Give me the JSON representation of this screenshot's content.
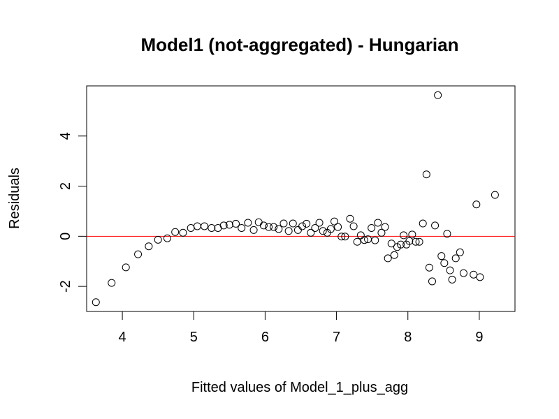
{
  "chart_data": {
    "type": "scatter",
    "title": "Model1 (not-aggregated) - Hungarian",
    "xlabel": "Fitted values of Model_1_plus_agg",
    "ylabel": "Residuals",
    "xlim": [
      3.5,
      9.5
    ],
    "ylim": [
      -3.0,
      6.0
    ],
    "x_ticks": [
      4,
      5,
      6,
      7,
      8,
      9
    ],
    "y_ticks": [
      -2,
      0,
      2,
      4
    ],
    "reference_line": {
      "y": 0,
      "color": "#ff0000"
    },
    "marker": "open-circle",
    "grid": false,
    "legend": "none",
    "points": [
      {
        "x": 3.63,
        "y": -2.63
      },
      {
        "x": 3.85,
        "y": -1.86
      },
      {
        "x": 4.05,
        "y": -1.24
      },
      {
        "x": 4.22,
        "y": -0.72
      },
      {
        "x": 4.37,
        "y": -0.4
      },
      {
        "x": 4.5,
        "y": -0.14
      },
      {
        "x": 4.63,
        "y": -0.08
      },
      {
        "x": 4.74,
        "y": 0.17
      },
      {
        "x": 4.85,
        "y": 0.14
      },
      {
        "x": 4.96,
        "y": 0.33
      },
      {
        "x": 5.05,
        "y": 0.4
      },
      {
        "x": 5.15,
        "y": 0.4
      },
      {
        "x": 5.25,
        "y": 0.33
      },
      {
        "x": 5.34,
        "y": 0.33
      },
      {
        "x": 5.42,
        "y": 0.43
      },
      {
        "x": 5.5,
        "y": 0.46
      },
      {
        "x": 5.59,
        "y": 0.5
      },
      {
        "x": 5.67,
        "y": 0.33
      },
      {
        "x": 5.76,
        "y": 0.54
      },
      {
        "x": 5.84,
        "y": 0.25
      },
      {
        "x": 5.91,
        "y": 0.56
      },
      {
        "x": 5.98,
        "y": 0.43
      },
      {
        "x": 6.05,
        "y": 0.37
      },
      {
        "x": 6.12,
        "y": 0.37
      },
      {
        "x": 6.19,
        "y": 0.29
      },
      {
        "x": 6.26,
        "y": 0.51
      },
      {
        "x": 6.33,
        "y": 0.21
      },
      {
        "x": 6.39,
        "y": 0.51
      },
      {
        "x": 6.46,
        "y": 0.25
      },
      {
        "x": 6.52,
        "y": 0.4
      },
      {
        "x": 6.58,
        "y": 0.5
      },
      {
        "x": 6.64,
        "y": 0.14
      },
      {
        "x": 6.7,
        "y": 0.33
      },
      {
        "x": 6.76,
        "y": 0.54
      },
      {
        "x": 6.81,
        "y": 0.21
      },
      {
        "x": 6.87,
        "y": 0.14
      },
      {
        "x": 6.92,
        "y": 0.29
      },
      {
        "x": 6.97,
        "y": 0.59
      },
      {
        "x": 7.02,
        "y": 0.37
      },
      {
        "x": 7.07,
        "y": -0.01
      },
      {
        "x": 7.12,
        "y": -0.01
      },
      {
        "x": 7.19,
        "y": 0.7
      },
      {
        "x": 7.24,
        "y": 0.4
      },
      {
        "x": 7.29,
        "y": -0.22
      },
      {
        "x": 7.34,
        "y": 0.04
      },
      {
        "x": 7.39,
        "y": -0.15
      },
      {
        "x": 7.44,
        "y": -0.12
      },
      {
        "x": 7.49,
        "y": 0.33
      },
      {
        "x": 7.54,
        "y": -0.16
      },
      {
        "x": 7.58,
        "y": 0.54
      },
      {
        "x": 7.63,
        "y": 0.14
      },
      {
        "x": 7.68,
        "y": 0.37
      },
      {
        "x": 7.72,
        "y": -0.88
      },
      {
        "x": 7.77,
        "y": -0.29
      },
      {
        "x": 7.81,
        "y": -0.75
      },
      {
        "x": 7.85,
        "y": -0.43
      },
      {
        "x": 7.9,
        "y": -0.33
      },
      {
        "x": 7.94,
        "y": 0.04
      },
      {
        "x": 7.98,
        "y": -0.33
      },
      {
        "x": 8.02,
        "y": -0.19
      },
      {
        "x": 8.06,
        "y": 0.07
      },
      {
        "x": 8.11,
        "y": -0.22
      },
      {
        "x": 8.16,
        "y": -0.22
      },
      {
        "x": 8.21,
        "y": 0.51
      },
      {
        "x": 8.26,
        "y": 2.47
      },
      {
        "x": 8.3,
        "y": -1.25
      },
      {
        "x": 8.34,
        "y": -1.8
      },
      {
        "x": 8.38,
        "y": 0.43
      },
      {
        "x": 8.42,
        "y": 5.63
      },
      {
        "x": 8.47,
        "y": -0.79
      },
      {
        "x": 8.51,
        "y": -1.07
      },
      {
        "x": 8.55,
        "y": 0.1
      },
      {
        "x": 8.59,
        "y": -1.36
      },
      {
        "x": 8.62,
        "y": -1.73
      },
      {
        "x": 8.67,
        "y": -0.88
      },
      {
        "x": 8.73,
        "y": -0.64
      },
      {
        "x": 8.78,
        "y": -1.47
      },
      {
        "x": 8.92,
        "y": -1.53
      },
      {
        "x": 8.96,
        "y": 1.27
      },
      {
        "x": 9.01,
        "y": -1.63
      },
      {
        "x": 9.22,
        "y": 1.65
      }
    ]
  }
}
